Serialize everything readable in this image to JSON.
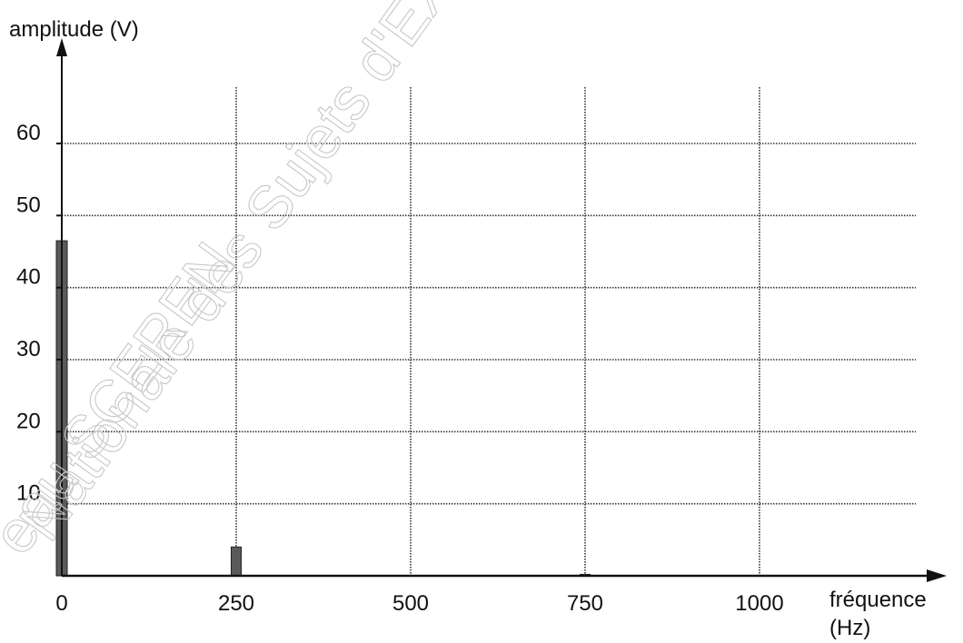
{
  "chart_data": {
    "type": "bar",
    "title": "",
    "ylabel": "amplitude (V)",
    "xlabel_line1": "fréquence",
    "xlabel_line2": "(Hz)",
    "x_ticks": [
      0,
      250,
      500,
      750,
      1000
    ],
    "x_tick_labels": [
      "0",
      "250",
      "500",
      "750",
      "1000"
    ],
    "y_ticks": [
      10,
      20,
      30,
      40,
      50,
      60
    ],
    "y_tick_labels": [
      "10",
      "20",
      "30",
      "40",
      "50",
      "60"
    ],
    "xlim": [
      0,
      1230
    ],
    "ylim": [
      0,
      60
    ],
    "grid": true,
    "grid_style": "dotted",
    "bars": [
      {
        "x": 0,
        "value": 46.5
      },
      {
        "x": 250,
        "value": 4
      },
      {
        "x": 750,
        "value": 0.2
      }
    ],
    "bar_color": "#5a5a5a"
  },
  "watermark": {
    "line1": "Nationale des Sujets d'Exa",
    "line2": "eau SCEREN"
  }
}
